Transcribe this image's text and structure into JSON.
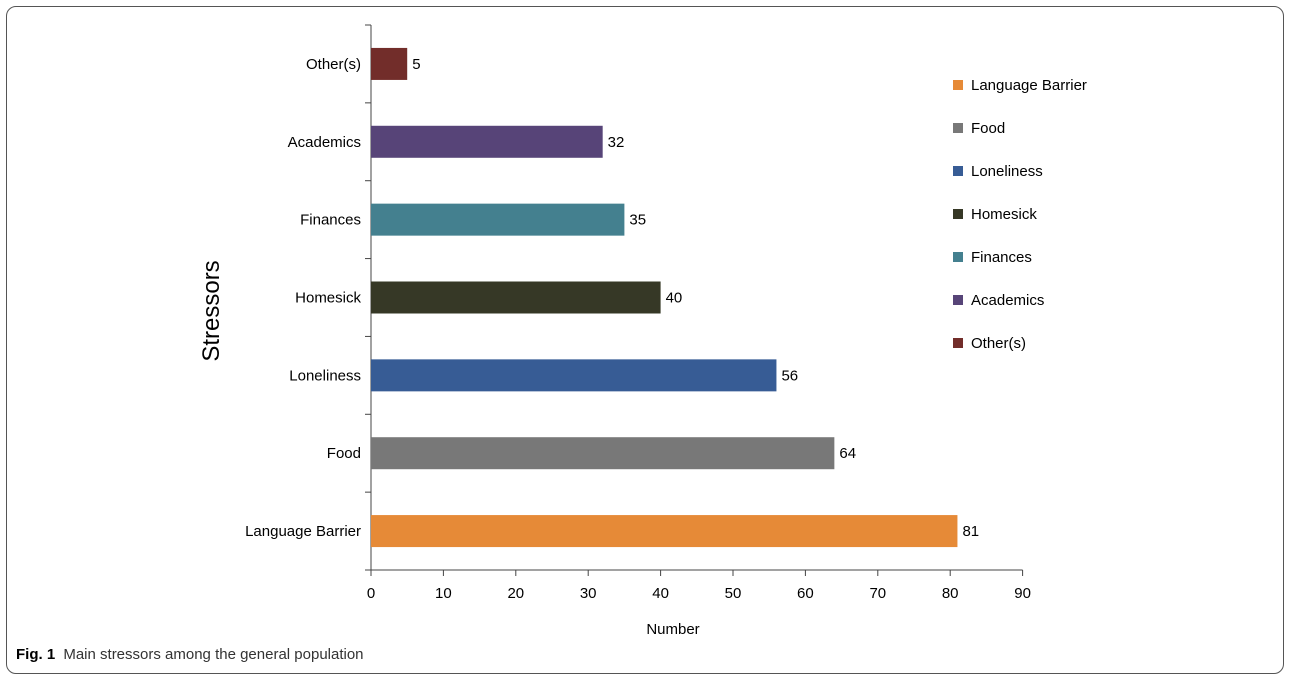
{
  "figure": {
    "caption_label": "Fig. 1",
    "caption_text": "Main stressors among the general population"
  },
  "chart_data": {
    "type": "bar",
    "orientation": "horizontal",
    "title": "",
    "xlabel": "Number",
    "ylabel": "Stressors",
    "xlim": [
      0,
      90
    ],
    "xticks": [
      "0",
      "10",
      "20",
      "30",
      "40",
      "50",
      "60",
      "70",
      "80",
      "90"
    ],
    "categories": [
      "Language Barrier",
      "Food",
      "Loneliness",
      "Homesick",
      "Finances",
      "Academics",
      "Other(s)"
    ],
    "values": [
      81,
      64,
      56,
      40,
      35,
      32,
      5
    ],
    "colors": [
      "#E68A37",
      "#787878",
      "#375C95",
      "#363826",
      "#44808F",
      "#574478",
      "#722D2A"
    ],
    "legend_position": "right",
    "legend": [
      "Language Barrier",
      "Food",
      "Loneliness",
      "Homesick",
      "Finances",
      "Academics",
      "Other(s)"
    ],
    "grid": false
  }
}
